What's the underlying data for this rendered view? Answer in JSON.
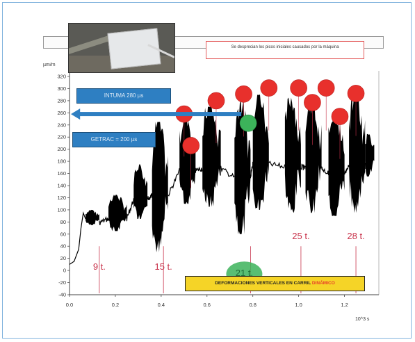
{
  "page": {
    "y_unit": "µm/m",
    "x_unit": "10^3 s"
  },
  "boxes": {
    "intuma": "INTUMA 280 µs",
    "getrac": "GETRAC = 200 µs"
  },
  "note": {
    "text": "Se desprecian los picos iniciales causados por la máquina"
  },
  "legend": {
    "main": "DEFORMACIONES VERTICALES EN CARRIL",
    "highlight": "DINÁMICO"
  },
  "colors": {
    "signal": "#000000",
    "peak_marker": "#e8302c",
    "highlight_marker": "#3cb35a",
    "arrow": "#2e7fc2",
    "label_red": "#c8324a",
    "frame": "#7fb2dd"
  },
  "chart_data": {
    "type": "line",
    "title": "",
    "xlabel": "10^3 s",
    "ylabel": "µm/m",
    "xlim": [
      0.0,
      1.35
    ],
    "ylim": [
      -40,
      320
    ],
    "x_ticks": [
      "0.0",
      "0.2",
      "0.4",
      "0.6",
      "0.8",
      "1.0",
      "1.2"
    ],
    "y_ticks": [
      "-40",
      "-20",
      "0",
      "20",
      "40",
      "60",
      "80",
      "100",
      "120",
      "140",
      "160",
      "180",
      "200",
      "220",
      "240",
      "260",
      "280",
      "300",
      "320"
    ],
    "grid": false,
    "bursts": [
      {
        "x_start": 0.07,
        "x_end": 0.13,
        "y_low": 75,
        "y_high": 100
      },
      {
        "x_start": 0.17,
        "x_end": 0.25,
        "y_low": 65,
        "y_high": 125
      },
      {
        "x_start": 0.28,
        "x_end": 0.34,
        "y_low": 85,
        "y_high": 175
      },
      {
        "x_start": 0.36,
        "x_end": 0.43,
        "y_low": 30,
        "y_high": 245
      },
      {
        "x_start": 0.48,
        "x_end": 0.55,
        "y_low": 110,
        "y_high": 255
      },
      {
        "x_start": 0.58,
        "x_end": 0.66,
        "y_low": 105,
        "y_high": 270
      },
      {
        "x_start": 0.72,
        "x_end": 0.79,
        "y_low": 60,
        "y_high": 280
      },
      {
        "x_start": 0.8,
        "x_end": 0.87,
        "y_low": 100,
        "y_high": 290
      },
      {
        "x_start": 0.94,
        "x_end": 1.01,
        "y_low": 95,
        "y_high": 285
      },
      {
        "x_start": 1.03,
        "x_end": 1.1,
        "y_low": 95,
        "y_high": 280
      },
      {
        "x_start": 1.13,
        "x_end": 1.2,
        "y_low": 90,
        "y_high": 265
      },
      {
        "x_start": 1.22,
        "x_end": 1.29,
        "y_low": 95,
        "y_high": 295
      },
      {
        "x_start": 1.29,
        "x_end": 1.33,
        "y_low": 155,
        "y_high": 225
      }
    ],
    "start_trace": [
      [
        0.0,
        10
      ],
      [
        0.02,
        15
      ],
      [
        0.04,
        35
      ],
      [
        0.05,
        70
      ],
      [
        0.06,
        95
      ],
      [
        0.07,
        85
      ]
    ],
    "axle_labels": [
      {
        "x": 0.13,
        "text": "9 t."
      },
      {
        "x": 0.41,
        "text": "15 t."
      },
      {
        "x": 0.79,
        "text": "21 t."
      },
      {
        "x": 1.01,
        "text": "25 t."
      },
      {
        "x": 1.25,
        "text": "28 t."
      }
    ],
    "peak_markers": [
      {
        "x": 0.5,
        "y": 258
      },
      {
        "x": 0.53,
        "y": 206
      },
      {
        "x": 0.64,
        "y": 280
      },
      {
        "x": 0.76,
        "y": 291
      },
      {
        "x": 0.87,
        "y": 301
      },
      {
        "x": 1.0,
        "y": 301
      },
      {
        "x": 1.06,
        "y": 277
      },
      {
        "x": 1.12,
        "y": 301
      },
      {
        "x": 1.18,
        "y": 254
      },
      {
        "x": 1.25,
        "y": 292
      }
    ],
    "highlight_marker": {
      "x": 0.78,
      "y": 243
    },
    "reference_arrow_y": 258
  }
}
